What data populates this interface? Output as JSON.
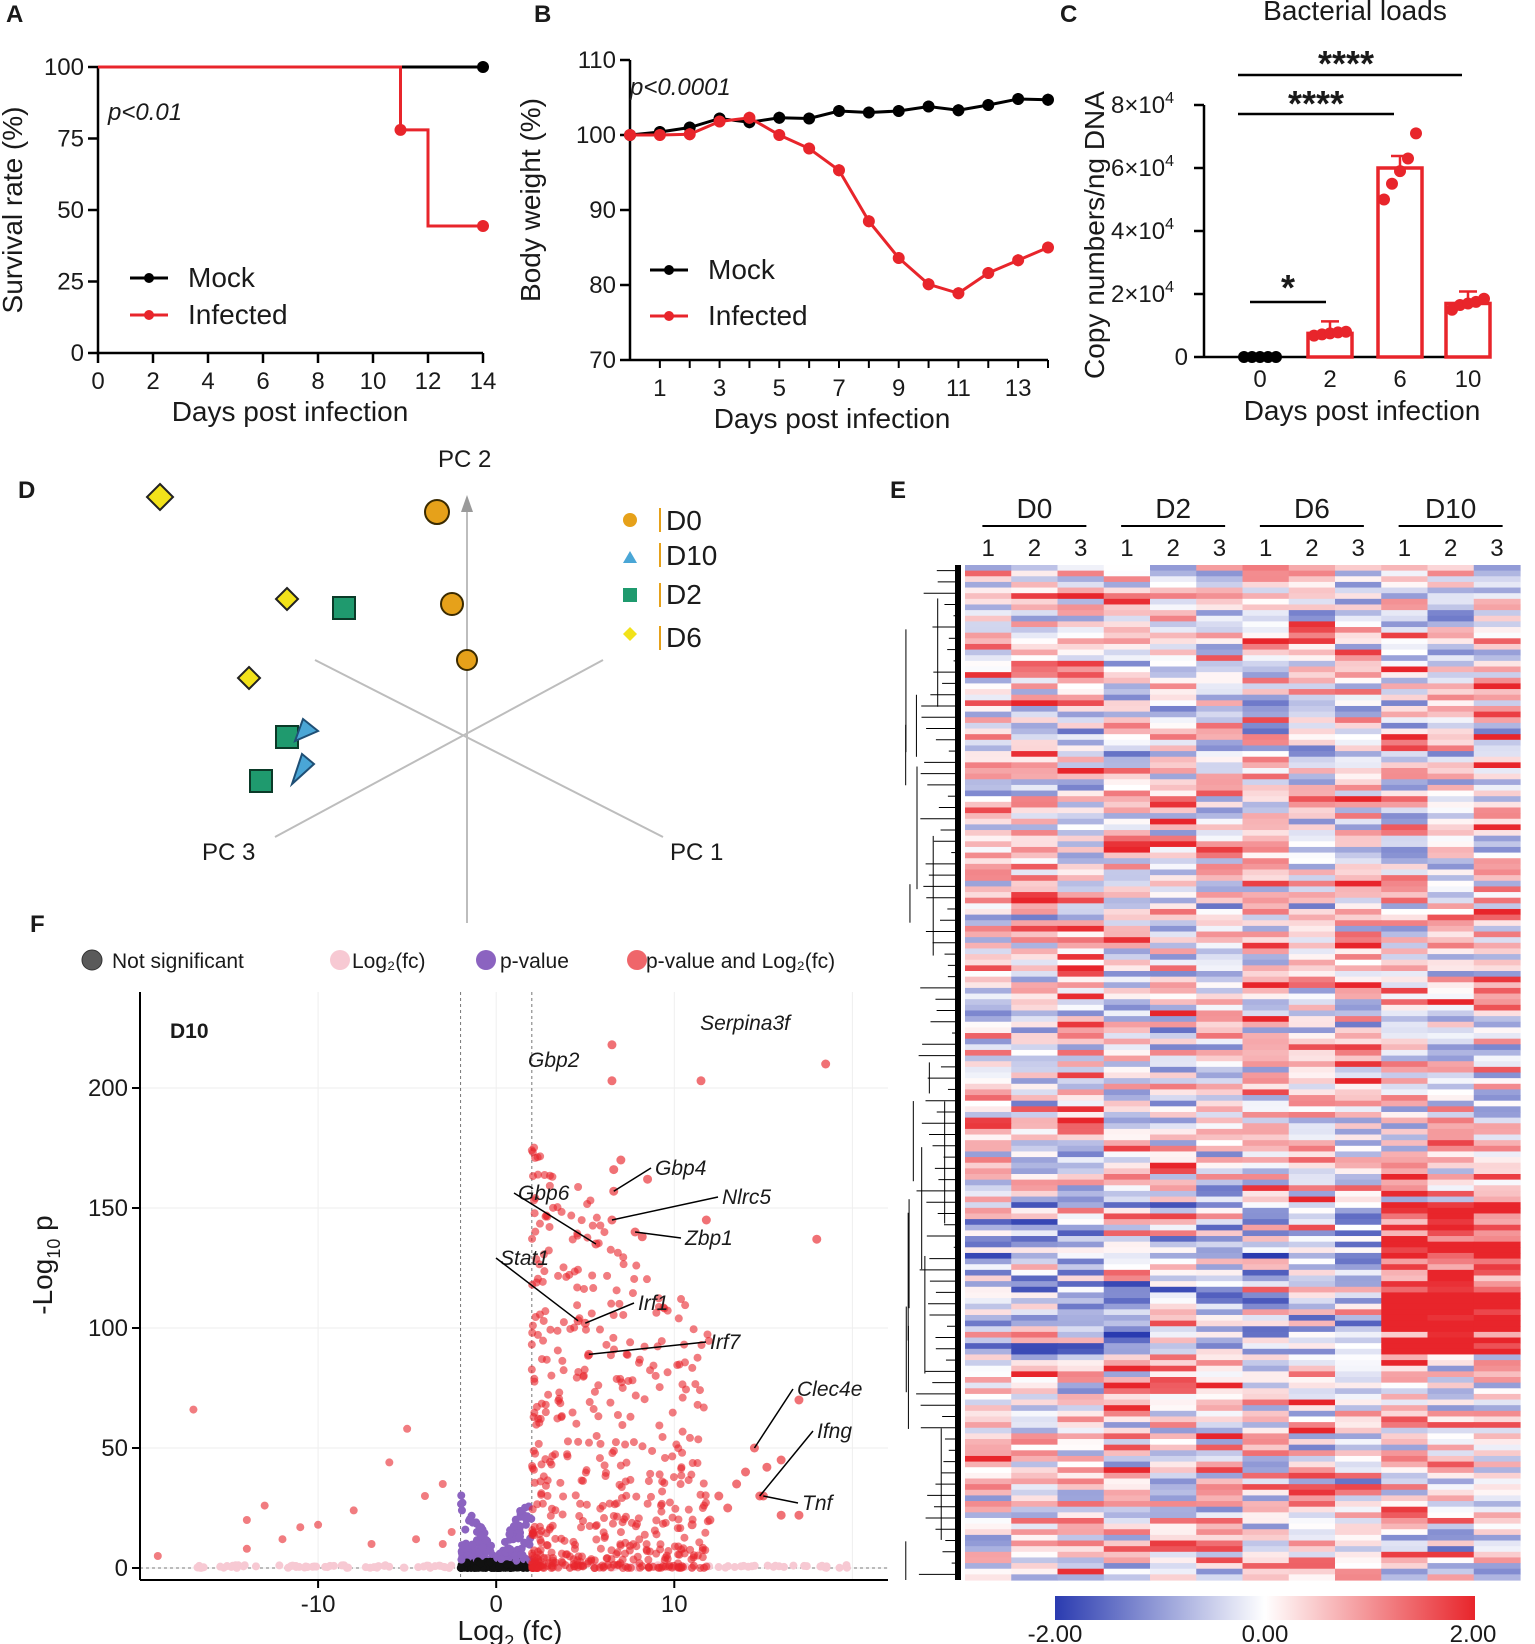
{
  "chart_data": [
    {
      "panel": "A",
      "type": "line",
      "xlabel": "Days post infection",
      "ylabel": "Survival rate (%)",
      "xlim": [
        0,
        14
      ],
      "ylim": [
        0,
        100
      ],
      "xticks": [
        "0",
        "2",
        "4",
        "6",
        "8",
        "10",
        "12",
        "14"
      ],
      "yticks": [
        "0",
        "25",
        "50",
        "75",
        "100"
      ],
      "annotation": "p<0.01",
      "legend": [
        "Mock",
        "Infected"
      ],
      "series": [
        {
          "name": "Mock",
          "color": "#000000",
          "x": [
            0,
            14
          ],
          "y": [
            100,
            100
          ]
        },
        {
          "name": "Infected",
          "color": "#e8252b",
          "x": [
            0,
            11,
            11,
            12,
            12,
            14
          ],
          "y": [
            100,
            100,
            78,
            78,
            44.4,
            44.4
          ]
        }
      ]
    },
    {
      "panel": "B",
      "type": "line",
      "xlabel": "Days post infection",
      "ylabel": "Body weight (%)",
      "xlim": [
        0,
        14
      ],
      "ylim": [
        70,
        110
      ],
      "xticks": [
        "1",
        "3",
        "5",
        "7",
        "9",
        "11",
        "13"
      ],
      "yticks": [
        "70",
        "80",
        "90",
        "100",
        "110"
      ],
      "annotation": "p<0.0001",
      "legend": [
        "Mock",
        "Infected"
      ],
      "series": [
        {
          "name": "Mock",
          "color": "#000000",
          "x": [
            0,
            1,
            2,
            3,
            4,
            5,
            6,
            7,
            8,
            9,
            10,
            11,
            12,
            13,
            14
          ],
          "y": [
            100,
            100.4,
            101,
            102.2,
            101.7,
            102.3,
            102.2,
            103.2,
            103,
            103.2,
            103.8,
            103.3,
            104,
            104.8,
            104.7
          ]
        },
        {
          "name": "Infected",
          "color": "#e8252b",
          "x": [
            0,
            1,
            2,
            3,
            4,
            5,
            6,
            7,
            8,
            9,
            10,
            11,
            12,
            13,
            14
          ],
          "y": [
            100,
            100,
            100.1,
            101.8,
            102.3,
            100,
            98.2,
            95.3,
            88.5,
            83.6,
            80.1,
            78.9,
            81.6,
            83.3,
            85
          ]
        }
      ]
    },
    {
      "panel": "C",
      "type": "bar",
      "title": "Bacterial loads",
      "xlabel": "Days post infection",
      "ylabel": "Copy numbers/ng DNA",
      "categories": [
        "0",
        "2",
        "6",
        "10"
      ],
      "values": [
        0,
        7500,
        60000,
        17000
      ],
      "points": [
        [
          0,
          0,
          0,
          0,
          0
        ],
        [
          6800,
          7200,
          7500,
          7800,
          8000
        ],
        [
          50000,
          55000,
          59000,
          63000,
          71000
        ],
        [
          15000,
          16500,
          17000,
          17500,
          18500
        ]
      ],
      "ylim": [
        0,
        80000
      ],
      "yticks": [
        "0",
        "2×10",
        "4×10",
        "6×10",
        "8×10"
      ],
      "ytick_exponent": "4",
      "significance": [
        "*",
        "****",
        "****"
      ]
    },
    {
      "panel": "D",
      "type": "scatter",
      "axes": [
        "PC 1",
        "PC 2",
        "PC 3"
      ],
      "legend": [
        {
          "label": "D0",
          "color": "#e6a11a"
        },
        {
          "label": "D10",
          "color": "#4aa6d6"
        },
        {
          "label": "D2",
          "color": "#1f9a6e"
        },
        {
          "label": "D6",
          "color": "#f2e21a"
        }
      ]
    },
    {
      "panel": "E",
      "type": "heatmap",
      "groups": [
        "D0",
        "D2",
        "D6",
        "D10"
      ],
      "replicates": [
        "1",
        "2",
        "3"
      ],
      "colorbar": [
        "-2.00",
        "0.00",
        "2.00"
      ],
      "colors": {
        "low": "#2a3bb0",
        "mid": "#ffffff",
        "high": "#e8252b"
      }
    },
    {
      "panel": "F",
      "type": "scatter",
      "title": "D10",
      "xlabel": "Log",
      "xlabel_sub": "2",
      "xlabel_tail": " (fc)",
      "ylabel": "-Log",
      "ylabel_sub": "10",
      "ylabel_tail": " p",
      "xticks": [
        "-10",
        "0",
        "10"
      ],
      "yticks": [
        "0",
        "50",
        "100",
        "150",
        "200"
      ],
      "legend": [
        {
          "label": "Not significant",
          "color": "#5a5a5a"
        },
        {
          "label": "Log₂(fc)",
          "color": "#f7c9d3"
        },
        {
          "label": "p-value",
          "color": "#8b63c0"
        },
        {
          "label": "p-value and Log₂(fc)",
          "color": "#e8252b"
        }
      ],
      "genes": [
        {
          "label": "Serpina3f",
          "x": 18.5,
          "y": 210
        },
        {
          "label": "Gbp2",
          "x": 6.5,
          "y": 203
        },
        {
          "label": "Gbp4",
          "x": 6.6,
          "y": 157
        },
        {
          "label": "Nlrc5",
          "x": 6.5,
          "y": 145
        },
        {
          "label": "Gbp6",
          "x": 5.6,
          "y": 135
        },
        {
          "label": "Zbp1",
          "x": 7.8,
          "y": 140
        },
        {
          "label": "Stat1",
          "x": 4.6,
          "y": 103
        },
        {
          "label": "Irf1",
          "x": 5.0,
          "y": 102
        },
        {
          "label": "Irf7",
          "x": 5.2,
          "y": 89
        },
        {
          "label": "Clec4e",
          "x": 14.5,
          "y": 50
        },
        {
          "label": "Ifng",
          "x": 14.8,
          "y": 30
        },
        {
          "label": "Tnf",
          "x": 15.0,
          "y": 30
        }
      ]
    }
  ],
  "panel_labels": [
    "A",
    "B",
    "C",
    "D",
    "E",
    "F"
  ]
}
